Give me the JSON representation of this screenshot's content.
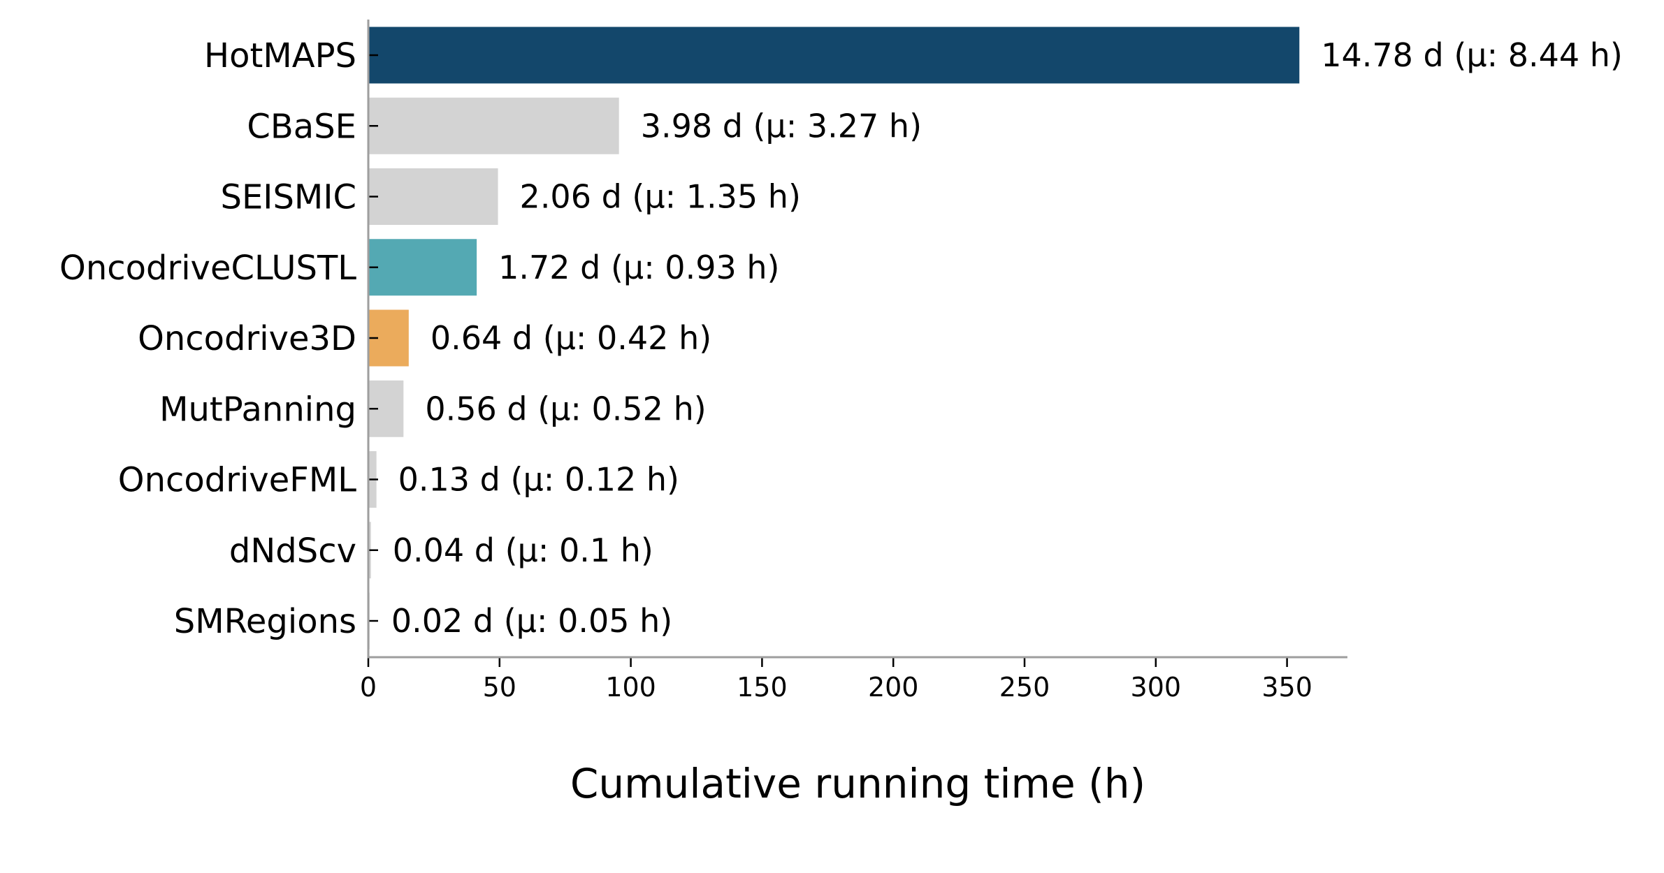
{
  "chart_data": {
    "type": "bar",
    "orientation": "horizontal",
    "categories": [
      "HotMAPS",
      "CBaSE",
      "SEISMIC",
      "OncodriveCLUSTL",
      "Oncodrive3D",
      "MutPanning",
      "OncodriveFML",
      "dNdScv",
      "SMRegions"
    ],
    "values": [
      354.7,
      95.5,
      49.4,
      41.3,
      15.4,
      13.4,
      3.1,
      1.0,
      0.5
    ],
    "data_labels": [
      "14.78 d (μ: 8.44 h)",
      "3.98 d (μ: 3.27 h)",
      "2.06 d (μ: 1.35 h)",
      "1.72 d (μ: 0.93 h)",
      "0.64 d (μ: 0.42 h)",
      "0.56 d (μ: 0.52 h)",
      "0.13 d (μ: 0.12 h)",
      "0.04 d (μ: 0.1 h)",
      "0.02 d (μ: 0.05 h)"
    ],
    "colors": [
      "#13476b",
      "#d3d3d3",
      "#d3d3d3",
      "#54a9b3",
      "#ebab5c",
      "#d3d3d3",
      "#d3d3d3",
      "#d3d3d3",
      "#d3d3d3"
    ],
    "xlabel": "Cumulative running time (h)",
    "ylabel": "",
    "title": "",
    "xlim": [
      0,
      373
    ],
    "xticks": [
      0,
      50,
      100,
      150,
      200,
      250,
      300,
      350
    ],
    "grid": false,
    "legend": "none"
  }
}
